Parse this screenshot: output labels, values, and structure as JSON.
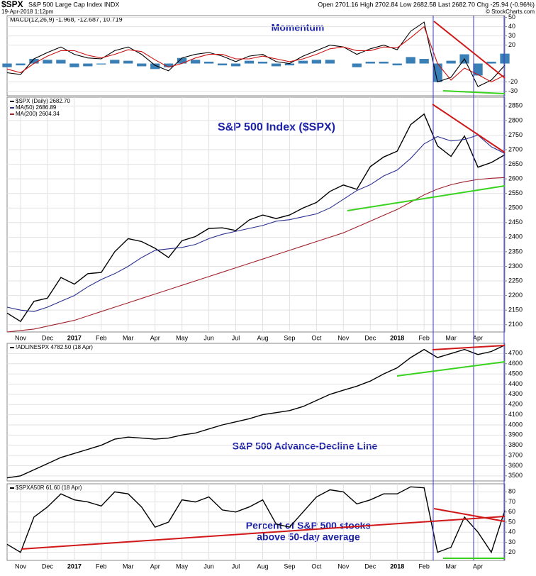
{
  "header": {
    "symbol": "$SPX",
    "name": "S&P 500 Large Cap Index INDX",
    "date": "19-Apr-2018 1:12pm",
    "quote": "Open 2701.16  High 2702.84  Low 2682.58  Last 2682.70  Chg -25.94 (-0.96%)",
    "credit": "© StockCharts.com"
  },
  "chart_data": [
    {
      "type": "macd",
      "title": "Momentum",
      "legend": "MACD(12,26,9) -1.968, -12.687, 10.719",
      "ylim": [
        -35,
        52
      ],
      "yticks": [
        -30,
        -20,
        20,
        30,
        40,
        50
      ],
      "grid": true,
      "series": [
        {
          "kind": "histogram",
          "color": "#3a7fb5",
          "values": [
            -4,
            -2,
            5,
            4,
            4,
            -4,
            -3,
            -1,
            4,
            3,
            -3,
            -6,
            -4,
            6,
            4,
            2,
            -2,
            -3,
            3,
            2,
            -3,
            -2,
            3,
            4,
            4,
            0,
            -4,
            2,
            2,
            -2,
            7,
            5,
            -20,
            3,
            10,
            -13,
            2,
            10.719
          ]
        },
        {
          "kind": "line",
          "color": "#000000",
          "values": [
            -10,
            -12,
            5,
            12,
            18,
            10,
            6,
            5,
            14,
            18,
            10,
            -2,
            -8,
            6,
            10,
            12,
            8,
            2,
            8,
            10,
            2,
            0,
            8,
            14,
            20,
            18,
            10,
            16,
            20,
            15,
            35,
            45,
            -20,
            -15,
            5,
            -25,
            -18,
            -1.968
          ]
        },
        {
          "kind": "line",
          "color": "#cc1111",
          "values": [
            -6,
            -10,
            0,
            8,
            14,
            14,
            9,
            6,
            10,
            15,
            13,
            4,
            -4,
            0,
            6,
            10,
            10,
            5,
            5,
            8,
            5,
            2,
            5,
            10,
            16,
            18,
            14,
            14,
            18,
            17,
            28,
            40,
            0,
            -18,
            -5,
            -12,
            -20,
            -12.687
          ]
        }
      ]
    },
    {
      "type": "line",
      "title": "S&P 500 Index ($SPX)",
      "categories": [
        null,
        "Nov",
        null,
        "Dec",
        null,
        "2017",
        null,
        "Feb",
        null,
        "Mar",
        null,
        "Apr",
        null,
        "May",
        null,
        "Jun",
        null,
        "Jul",
        null,
        "Aug",
        null,
        "Sep",
        null,
        "Oct",
        null,
        "Nov",
        null,
        "Dec",
        null,
        "2018",
        null,
        "Feb",
        null,
        "Mar",
        null,
        "Apr",
        null,
        null
      ],
      "ylim": [
        2075,
        2880
      ],
      "yticks": [
        2100,
        2150,
        2200,
        2250,
        2300,
        2350,
        2400,
        2450,
        2500,
        2550,
        2600,
        2650,
        2700,
        2750,
        2800,
        2850
      ],
      "grid": true,
      "series": [
        {
          "name": "$SPX (Daily) 2682.70",
          "color": "#000000",
          "values": [
            2140,
            2111,
            2180,
            2191,
            2262,
            2239,
            2275,
            2279,
            2350,
            2395,
            2385,
            2362,
            2330,
            2388,
            2402,
            2430,
            2432,
            2423,
            2459,
            2476,
            2464,
            2476,
            2500,
            2519,
            2557,
            2579,
            2564,
            2642,
            2675,
            2695,
            2786,
            2822,
            2713,
            2677,
            2747,
            2640,
            2656,
            2682.7
          ]
        },
        {
          "name": "MA(50) 2686.89",
          "color": "#2b2f8f",
          "values": [
            2160,
            2150,
            2145,
            2160,
            2180,
            2200,
            2230,
            2255,
            2275,
            2300,
            2330,
            2355,
            2360,
            2365,
            2375,
            2395,
            2410,
            2420,
            2430,
            2440,
            2455,
            2460,
            2470,
            2480,
            2500,
            2530,
            2560,
            2580,
            2610,
            2630,
            2670,
            2720,
            2745,
            2730,
            2735,
            2750,
            2710,
            2686.89
          ]
        },
        {
          "name": "MA(200) 2604.34",
          "color": "#a0202a",
          "values": [
            2075,
            2080,
            2085,
            2095,
            2105,
            2115,
            2130,
            2145,
            2160,
            2175,
            2190,
            2205,
            2220,
            2235,
            2250,
            2265,
            2280,
            2295,
            2310,
            2325,
            2340,
            2355,
            2370,
            2385,
            2400,
            2415,
            2435,
            2455,
            2475,
            2495,
            2520,
            2545,
            2565,
            2580,
            2590,
            2598,
            2602,
            2604.34
          ]
        }
      ]
    },
    {
      "type": "line",
      "title": "S&P 500 Advance-Decline Line",
      "ylim": [
        3450,
        4800
      ],
      "yticks": [
        3500,
        3600,
        3700,
        3800,
        3900,
        4000,
        4100,
        4200,
        4300,
        4400,
        4500,
        4600,
        4700
      ],
      "grid": true,
      "series": [
        {
          "name": "!ADLINESPX 4782.50 (18 Apr)",
          "color": "#000000",
          "values": [
            3480,
            3500,
            3560,
            3620,
            3680,
            3720,
            3760,
            3800,
            3860,
            3880,
            3870,
            3860,
            3870,
            3900,
            3920,
            3960,
            4000,
            4030,
            4060,
            4100,
            4120,
            4140,
            4180,
            4240,
            4300,
            4340,
            4380,
            4430,
            4500,
            4560,
            4660,
            4740,
            4660,
            4700,
            4740,
            4690,
            4720,
            4782.5
          ]
        }
      ]
    },
    {
      "type": "line",
      "title": [
        "Percent of S&P 500 stocks",
        "above 50-day average"
      ],
      "categories": [
        null,
        "Nov",
        null,
        "Dec",
        null,
        "2017",
        null,
        "Feb",
        null,
        "Mar",
        null,
        "Apr",
        null,
        "May",
        null,
        "Jun",
        null,
        "Jul",
        null,
        "Aug",
        null,
        "Sep",
        null,
        "Oct",
        null,
        "Nov",
        null,
        "Dec",
        null,
        "2018",
        null,
        "Feb",
        null,
        "Mar",
        null,
        "Apr",
        null,
        null
      ],
      "ylim": [
        12,
        88
      ],
      "yticks": [
        20,
        30,
        40,
        50,
        60,
        70,
        80
      ],
      "grid": true,
      "series": [
        {
          "name": "$SPXA50R 61.60 (18 Apr)",
          "color": "#000000",
          "values": [
            28,
            20,
            55,
            65,
            78,
            72,
            70,
            66,
            80,
            78,
            65,
            45,
            50,
            72,
            70,
            75,
            62,
            60,
            65,
            72,
            48,
            45,
            60,
            75,
            82,
            80,
            68,
            72,
            78,
            78,
            85,
            84,
            20,
            25,
            55,
            40,
            20,
            61.6
          ]
        }
      ]
    }
  ]
}
